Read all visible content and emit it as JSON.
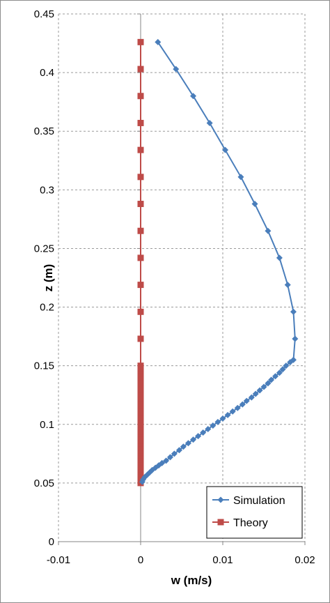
{
  "chart_data": {
    "type": "scatter",
    "title": "",
    "xlabel": "w (m/s)",
    "ylabel": "z (m)",
    "xlim": [
      -0.01,
      0.02
    ],
    "ylim": [
      0,
      0.45
    ],
    "x_ticks": [
      "-0.01",
      "0",
      "0.01",
      "0.02"
    ],
    "y_ticks": [
      "0",
      "0.05",
      "0.1",
      "0.15",
      "0.2",
      "0.25",
      "0.3",
      "0.35",
      "0.4",
      "0.45"
    ],
    "grid": "dashed",
    "legend_position": "bottom-right",
    "series": [
      {
        "name": "Simulation",
        "color": "#4a7ebb",
        "marker": "diamond",
        "points": [
          [
            0.0002,
            0.051
          ],
          [
            0.0003,
            0.053
          ],
          [
            0.0005,
            0.055
          ],
          [
            0.0008,
            0.057
          ],
          [
            0.0011,
            0.059
          ],
          [
            0.0014,
            0.061
          ],
          [
            0.0018,
            0.063
          ],
          [
            0.0022,
            0.065
          ],
          [
            0.0026,
            0.067
          ],
          [
            0.0031,
            0.069
          ],
          [
            0.0036,
            0.072
          ],
          [
            0.0041,
            0.075
          ],
          [
            0.0047,
            0.078
          ],
          [
            0.0052,
            0.081
          ],
          [
            0.0058,
            0.084
          ],
          [
            0.0064,
            0.087
          ],
          [
            0.007,
            0.09
          ],
          [
            0.0076,
            0.093
          ],
          [
            0.0082,
            0.096
          ],
          [
            0.0088,
            0.099
          ],
          [
            0.0094,
            0.102
          ],
          [
            0.01,
            0.105
          ],
          [
            0.0106,
            0.108
          ],
          [
            0.0112,
            0.111
          ],
          [
            0.0118,
            0.114
          ],
          [
            0.0124,
            0.117
          ],
          [
            0.0129,
            0.12
          ],
          [
            0.0135,
            0.123
          ],
          [
            0.014,
            0.126
          ],
          [
            0.0145,
            0.129
          ],
          [
            0.015,
            0.132
          ],
          [
            0.0155,
            0.135
          ],
          [
            0.0159,
            0.138
          ],
          [
            0.0164,
            0.141
          ],
          [
            0.0169,
            0.144
          ],
          [
            0.0173,
            0.147
          ],
          [
            0.0177,
            0.15
          ],
          [
            0.0182,
            0.153
          ],
          [
            0.0186,
            0.155
          ],
          [
            0.0188,
            0.173
          ],
          [
            0.0186,
            0.196
          ],
          [
            0.0179,
            0.219
          ],
          [
            0.0169,
            0.242
          ],
          [
            0.0155,
            0.265
          ],
          [
            0.0139,
            0.288
          ],
          [
            0.0122,
            0.311
          ],
          [
            0.0103,
            0.334
          ],
          [
            0.0084,
            0.357
          ],
          [
            0.0064,
            0.38
          ],
          [
            0.0043,
            0.403
          ],
          [
            0.0021,
            0.426
          ]
        ]
      },
      {
        "name": "Theory",
        "color": "#be4b48",
        "marker": "square",
        "points": [
          [
            0,
            0.05
          ],
          [
            0,
            0.052
          ],
          [
            0,
            0.054
          ],
          [
            0,
            0.056
          ],
          [
            0,
            0.058
          ],
          [
            0,
            0.06
          ],
          [
            0,
            0.062
          ],
          [
            0,
            0.064
          ],
          [
            0,
            0.066
          ],
          [
            0,
            0.068
          ],
          [
            0,
            0.07
          ],
          [
            0,
            0.072
          ],
          [
            0,
            0.074
          ],
          [
            0,
            0.076
          ],
          [
            0,
            0.078
          ],
          [
            0,
            0.08
          ],
          [
            0,
            0.082
          ],
          [
            0,
            0.084
          ],
          [
            0,
            0.086
          ],
          [
            0,
            0.088
          ],
          [
            0,
            0.09
          ],
          [
            0,
            0.092
          ],
          [
            0,
            0.094
          ],
          [
            0,
            0.096
          ],
          [
            0,
            0.098
          ],
          [
            0,
            0.1
          ],
          [
            0,
            0.102
          ],
          [
            0,
            0.104
          ],
          [
            0,
            0.106
          ],
          [
            0,
            0.108
          ],
          [
            0,
            0.11
          ],
          [
            0,
            0.112
          ],
          [
            0,
            0.114
          ],
          [
            0,
            0.116
          ],
          [
            0,
            0.118
          ],
          [
            0,
            0.12
          ],
          [
            0,
            0.122
          ],
          [
            0,
            0.124
          ],
          [
            0,
            0.126
          ],
          [
            0,
            0.128
          ],
          [
            0,
            0.13
          ],
          [
            0,
            0.132
          ],
          [
            0,
            0.134
          ],
          [
            0,
            0.136
          ],
          [
            0,
            0.138
          ],
          [
            0,
            0.14
          ],
          [
            0,
            0.142
          ],
          [
            0,
            0.144
          ],
          [
            0,
            0.146
          ],
          [
            0,
            0.148
          ],
          [
            0,
            0.15
          ],
          [
            0,
            0.173
          ],
          [
            0,
            0.196
          ],
          [
            0,
            0.219
          ],
          [
            0,
            0.242
          ],
          [
            0,
            0.265
          ],
          [
            0,
            0.288
          ],
          [
            0,
            0.311
          ],
          [
            0,
            0.334
          ],
          [
            0,
            0.357
          ],
          [
            0,
            0.38
          ],
          [
            0,
            0.403
          ],
          [
            0,
            0.426
          ]
        ]
      }
    ]
  }
}
